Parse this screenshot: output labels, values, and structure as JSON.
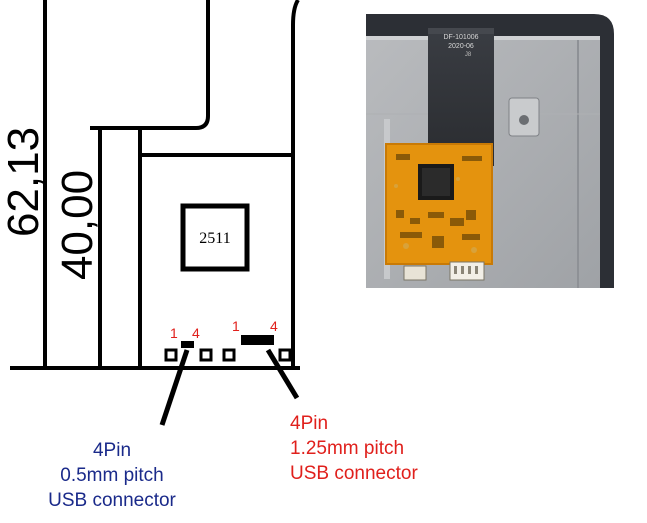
{
  "dimensions": {
    "outer_height": "62,13",
    "inner_height": "40,00"
  },
  "chip": {
    "label": "2511"
  },
  "pin_markers": {
    "left_start": "1",
    "left_end": "4",
    "right_start": "1",
    "right_end": "4"
  },
  "connectors": {
    "small": {
      "pins": "4Pin",
      "pitch": "0.5mm pitch",
      "type": "USB connector",
      "color": "#1a2a8a"
    },
    "large": {
      "pins": "4Pin",
      "pitch": "1.25mm pitch",
      "type": "USB connector",
      "color": "#e0201c"
    }
  },
  "photo": {
    "flex_label": "DF-101006",
    "flex_date": "2020-06",
    "flex_rev": "J8"
  }
}
